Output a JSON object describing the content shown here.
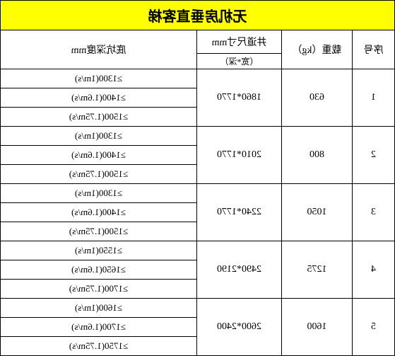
{
  "title": "无机房垂直客梯",
  "headers": {
    "seq": "序号",
    "load": "载重（kg）",
    "well_top": "井道尺寸mm",
    "well_sub": "（宽*深）",
    "depth": "底坑深度mm"
  },
  "rows": [
    {
      "seq": "1",
      "load": "630",
      "well": "1860*1770",
      "depths": [
        "≥1300(1m/s)",
        "≥1400(1.6m/s)",
        "≥1500(1.75m/s)"
      ]
    },
    {
      "seq": "2",
      "load": "800",
      "well": "2010*1770",
      "depths": [
        "≥1300(1m/s)",
        "≥1400(1.6m/s)",
        "≥1500(1.75m/s)"
      ]
    },
    {
      "seq": "3",
      "load": "1050",
      "well": "2240*1770",
      "depths": [
        "≥1300(1m/s)",
        "≥1400(1.6m/s)",
        "≥1500(1.75m/s)"
      ]
    },
    {
      "seq": "4",
      "load": "1275",
      "well": "2490*2190",
      "depths": [
        "≥1550(1m/s)",
        "≥1650(1.6m/s)",
        "≥1700(1.75m/s)"
      ]
    },
    {
      "seq": "5",
      "load": "1600",
      "well": "2600*2400",
      "depths": [
        "≥1600(1m/s)",
        "≥1700(1.6m/s)",
        "≥1750(1.75m/s)"
      ]
    }
  ],
  "colors": {
    "title_bg": "#ffff00",
    "border": "#000000",
    "bg": "#ffffff"
  }
}
